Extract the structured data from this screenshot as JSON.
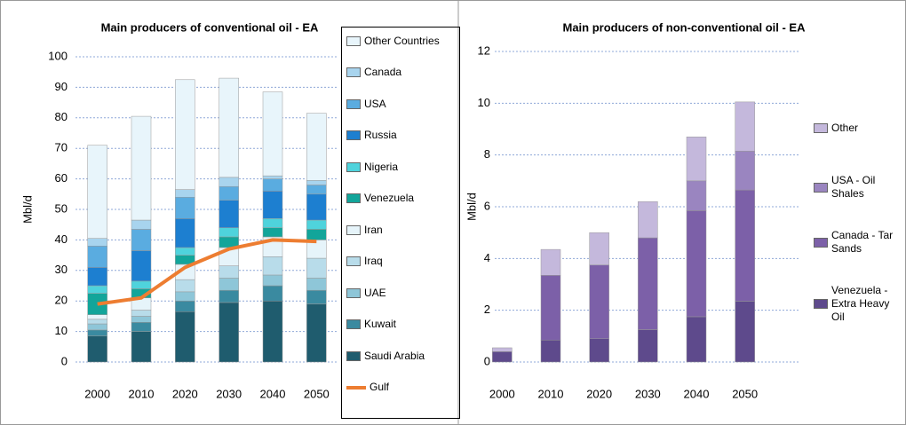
{
  "chart_data": [
    {
      "type": "bar",
      "stacked": true,
      "title": "Main producers of conventional oil - EA",
      "y_label": "Mbl/d",
      "categories": [
        "2000",
        "2010",
        "2020",
        "2030",
        "2040",
        "2050"
      ],
      "ylim": [
        0,
        100
      ],
      "yticks": [
        0,
        10,
        20,
        30,
        40,
        50,
        60,
        70,
        80,
        90,
        100
      ],
      "grid": true,
      "legend": "right",
      "series": [
        {
          "name": "Saudi Arabia",
          "color": "#1f5c6e",
          "values": [
            8.5,
            10,
            16.5,
            19.5,
            20,
            19
          ]
        },
        {
          "name": "Kuwait",
          "color": "#3a8aa0",
          "values": [
            2,
            3,
            3.5,
            4,
            5,
            4.5
          ]
        },
        {
          "name": "UAE",
          "color": "#8ec6d8",
          "values": [
            2,
            2,
            3,
            4,
            3.5,
            4
          ]
        },
        {
          "name": "Iraq",
          "color": "#b8dcea",
          "values": [
            1.5,
            2,
            4,
            4,
            6,
            6.5
          ]
        },
        {
          "name": "Iran",
          "color": "#e6f4fa",
          "values": [
            1.5,
            4,
            5,
            6,
            6.5,
            6
          ]
        },
        {
          "name": "Venezuela",
          "color": "#12a59a",
          "values": [
            7,
            3,
            3,
            3.5,
            3,
            3.5
          ]
        },
        {
          "name": "Nigeria",
          "color": "#4fd3dc",
          "values": [
            2.5,
            2.5,
            2.5,
            3,
            3,
            3
          ]
        },
        {
          "name": "Russia",
          "color": "#1d7fd0",
          "values": [
            6,
            10,
            9.5,
            9,
            9,
            8.5
          ]
        },
        {
          "name": "USA",
          "color": "#5aace0",
          "values": [
            7,
            7,
            7,
            4.5,
            4,
            3
          ]
        },
        {
          "name": "Canada",
          "color": "#a8d4ee",
          "values": [
            2.5,
            3,
            2.5,
            3,
            1,
            1.5
          ]
        },
        {
          "name": "Other Countries",
          "color": "#e8f5fb",
          "values": [
            30.5,
            34,
            36,
            32.5,
            27.5,
            22
          ]
        },
        {
          "name": "Gulf",
          "type": "line",
          "color": "#ed7d31",
          "values": [
            19,
            21,
            31,
            37,
            40,
            39.5
          ]
        }
      ]
    },
    {
      "type": "bar",
      "stacked": true,
      "title": "Main producers  of non-conventional  oil - EA",
      "y_label": "Mbl/d",
      "categories": [
        "2000",
        "2010",
        "2020",
        "2030",
        "2040",
        "2050"
      ],
      "ylim": [
        0,
        12
      ],
      "yticks": [
        0,
        2,
        4,
        6,
        8,
        10,
        12
      ],
      "grid": true,
      "legend": "right",
      "series": [
        {
          "name": "Venezuela - Extra Heavy Oil",
          "color": "#5e4a8c",
          "values": [
            0.4,
            0.85,
            0.9,
            1.25,
            1.75,
            2.35
          ]
        },
        {
          "name": "Canada - Tar Sands",
          "color": "#7c60a8",
          "values": [
            0,
            2.5,
            2.85,
            3.55,
            4.1,
            4.3
          ]
        },
        {
          "name": "USA - Oil Shales",
          "color": "#9a85c0",
          "values": [
            0,
            0,
            0,
            0,
            1.15,
            1.5
          ]
        },
        {
          "name": "Other",
          "color": "#c4b8dc",
          "values": [
            0.15,
            1,
            1.25,
            1.4,
            1.7,
            1.9
          ]
        }
      ]
    }
  ]
}
